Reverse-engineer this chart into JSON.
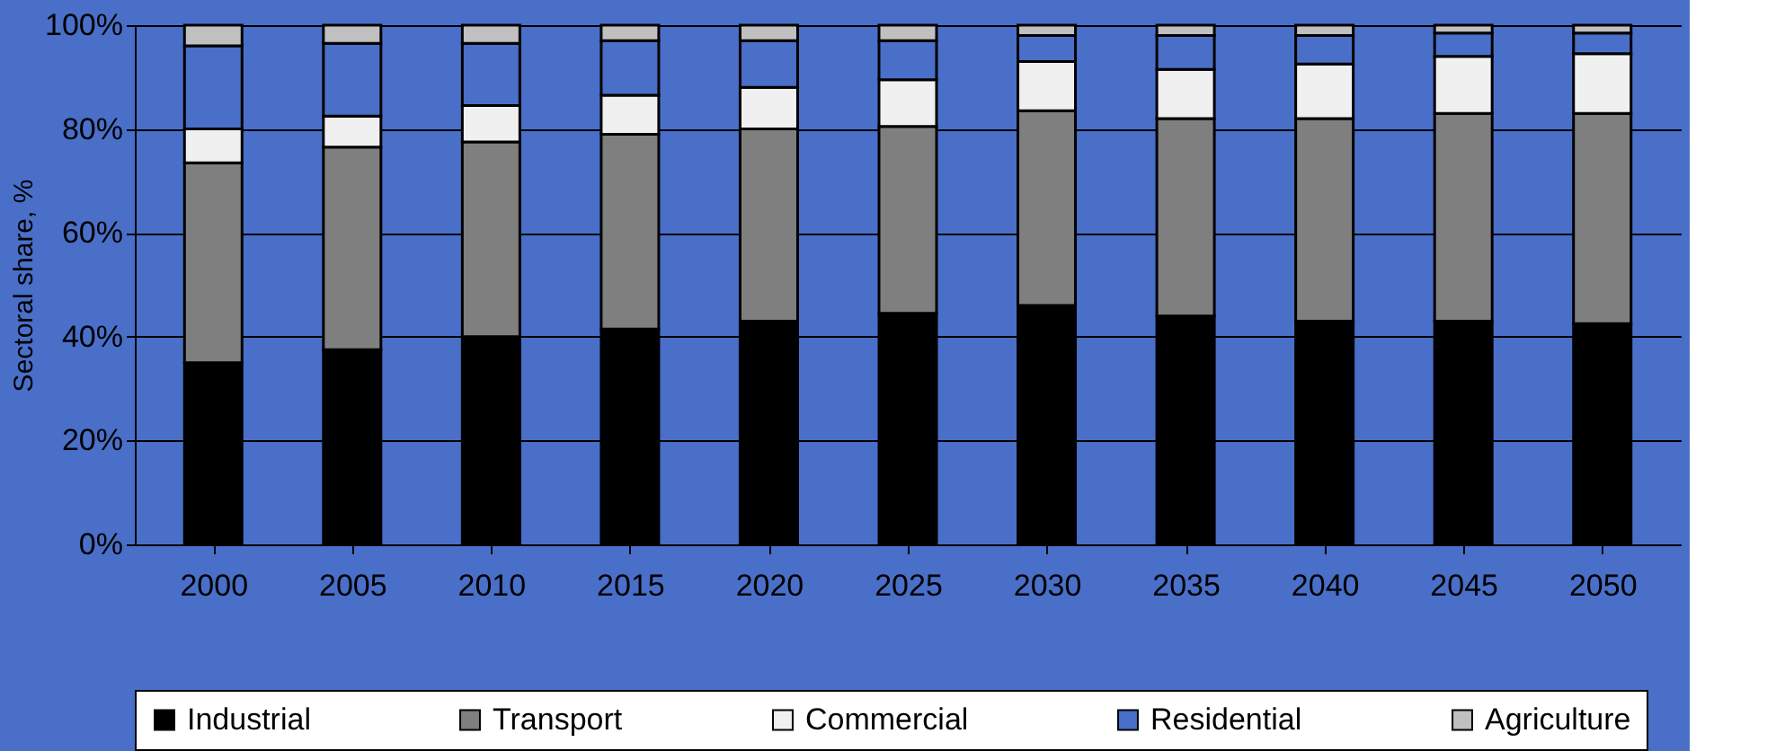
{
  "chart_data": {
    "type": "bar",
    "stacked": true,
    "ylabel": "Sectoral share, %",
    "categories": [
      "2000",
      "2005",
      "2010",
      "2015",
      "2020",
      "2025",
      "2030",
      "2035",
      "2040",
      "2045",
      "2050"
    ],
    "series": [
      {
        "name": "Industrial",
        "color": "#000000",
        "values": [
          35,
          37.5,
          40,
          41.5,
          43,
          44.5,
          46,
          44,
          43,
          43,
          42.5
        ]
      },
      {
        "name": "Transport",
        "color": "#7f7f7f",
        "values": [
          38.5,
          39,
          37.5,
          37.5,
          37,
          36,
          37.5,
          38,
          39,
          40,
          40.5
        ]
      },
      {
        "name": "Commercial",
        "color": "#f0f0f0",
        "values": [
          6.5,
          6,
          7,
          7.5,
          8,
          9,
          9.5,
          9.5,
          10.5,
          11,
          11.5
        ]
      },
      {
        "name": "Residential",
        "color": "#4a6fc8",
        "values": [
          16,
          14,
          12,
          10.5,
          9,
          7.5,
          5,
          6.5,
          5.5,
          4.5,
          4
        ]
      },
      {
        "name": "Agriculture",
        "color": "#c0c0c0",
        "values": [
          4,
          3.5,
          3.5,
          3,
          3,
          3,
          2,
          2,
          2,
          1.5,
          1.5
        ]
      }
    ],
    "ylim": [
      0,
      100
    ],
    "yticks": [
      {
        "value": 0,
        "label": "0%"
      },
      {
        "value": 20,
        "label": "20%"
      },
      {
        "value": 40,
        "label": "40%"
      },
      {
        "value": 60,
        "label": "60%"
      },
      {
        "value": 80,
        "label": "80%"
      },
      {
        "value": 100,
        "label": "100%"
      }
    ],
    "grid": "y",
    "legend": "bottom"
  }
}
